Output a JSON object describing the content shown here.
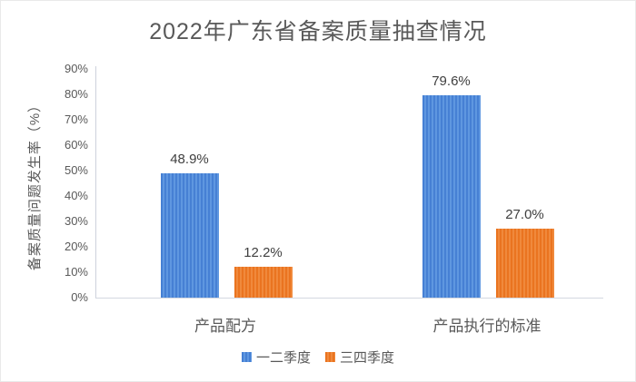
{
  "chart_data": {
    "type": "bar",
    "title": "2022年广东省备案质量抽查情况",
    "ylabel": "备案质量问题发生率（%）",
    "xlabel": "",
    "categories": [
      "产品配方",
      "产品执行的标准"
    ],
    "series": [
      {
        "name": "一二季度",
        "color": "#4a86d8",
        "values": [
          48.9,
          79.6
        ],
        "data_labels": [
          "48.9%",
          "79.6%"
        ]
      },
      {
        "name": "三四季度",
        "color": "#ed7d31",
        "values": [
          12.2,
          27.0
        ],
        "data_labels": [
          "12.2%",
          "27.0%"
        ]
      }
    ],
    "ylim": [
      0,
      90
    ],
    "ytick_step": 10,
    "ytick_labels": [
      "0%",
      "10%",
      "20%",
      "30%",
      "40%",
      "50%",
      "60%",
      "70%",
      "80%",
      "90%"
    ],
    "grid": false,
    "legend_position": "bottom",
    "axis_color": "#cdd2dc",
    "text_color": "#595959",
    "data_label_color": "#3f3f3f"
  }
}
